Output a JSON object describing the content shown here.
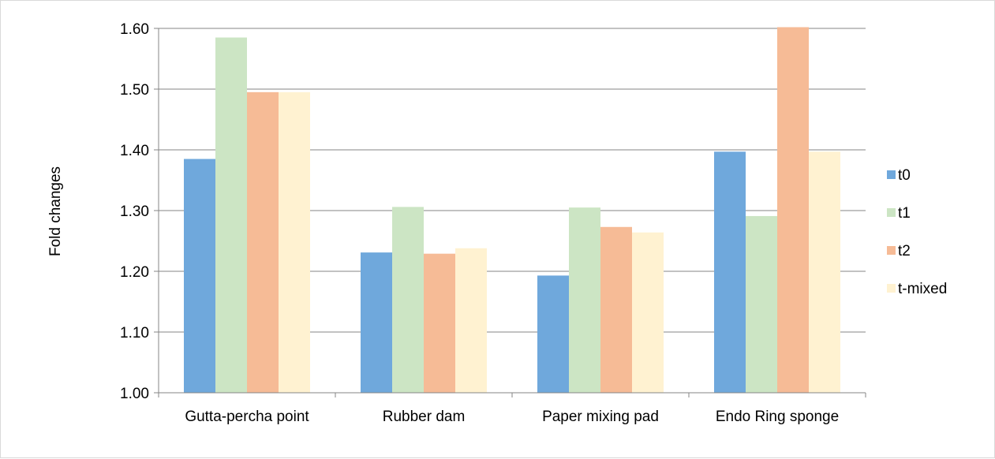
{
  "chart_data": {
    "type": "bar",
    "title": "",
    "xlabel": "",
    "ylabel": "Fold changes",
    "ylim": [
      1.0,
      1.6
    ],
    "yticks": [
      "1.00",
      "1.10",
      "1.20",
      "1.30",
      "1.40",
      "1.50",
      "1.60"
    ],
    "grid": true,
    "legend_position": "right",
    "categories": [
      "Gutta-percha point",
      "Rubber dam",
      "Paper mixing pad",
      "Endo Ring sponge"
    ],
    "series": [
      {
        "name": "t0",
        "color": "#6fa8dc",
        "values": [
          1.385,
          1.231,
          1.193,
          1.397
        ]
      },
      {
        "name": "t1",
        "color": "#cce5c4",
        "values": [
          1.585,
          1.306,
          1.305,
          1.291
        ]
      },
      {
        "name": "t2",
        "color": "#f6bb96",
        "values": [
          1.495,
          1.229,
          1.273,
          1.602
        ]
      },
      {
        "name": "t-mixed",
        "color": "#fff2d1",
        "values": [
          1.495,
          1.238,
          1.264,
          1.397
        ]
      }
    ]
  }
}
